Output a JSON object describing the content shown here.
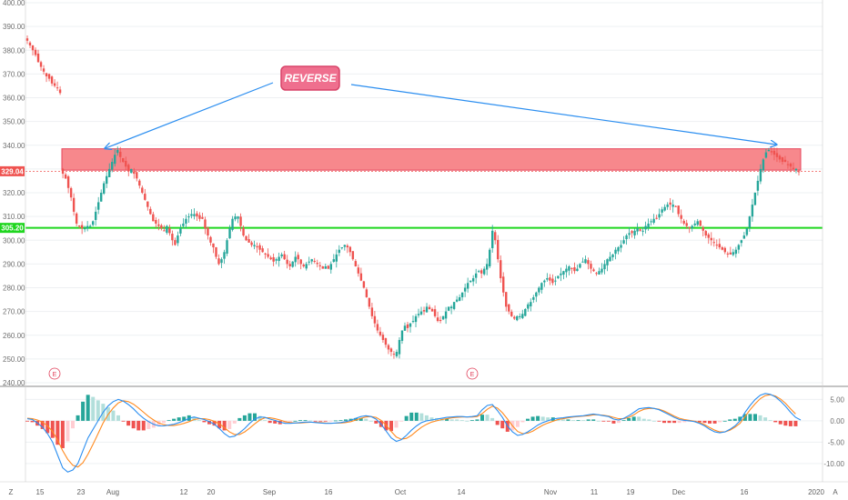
{
  "colors": {
    "up": "#26a69a",
    "down": "#ef5350",
    "support": "#1fd61f",
    "resistance_fill": "#f77c80",
    "resistance_stroke": "#e5334a",
    "arrow": "#2b8ef0",
    "reverse_fill": "#ef6f8e",
    "macd_line": "#2b8ef0",
    "signal_line": "#ff8a1f",
    "grid": "#eef0f3",
    "divider": "#888888"
  },
  "annotation": {
    "label": "REVERSE",
    "earnings_marker": "E"
  },
  "chart_data": [
    {
      "type": "candlestick",
      "title": "",
      "yticks": [
        "400.00",
        "390.00",
        "380.00",
        "370.00",
        "360.00",
        "350.00",
        "340.00",
        "330.00",
        "320.00",
        "310.00",
        "300.00",
        "290.00",
        "280.00",
        "270.00",
        "260.00",
        "250.00",
        "240.00"
      ],
      "ylim": [
        240,
        400
      ],
      "xticks": [
        "15",
        "23",
        "Aug",
        "12",
        "20",
        "Sep",
        "16",
        "Oct",
        "14",
        "Nov",
        "11",
        "19",
        "Dec",
        "16",
        "2020"
      ],
      "price_labels": [
        {
          "value": 329.04,
          "text": "329.04",
          "color": "#ef5350"
        },
        {
          "value": 305.2,
          "text": "305.20",
          "color": "#1fd61f"
        }
      ],
      "horizontal_lines": [
        {
          "value": 329.04,
          "style": "dotted",
          "color": "#ef5350"
        },
        {
          "value": 305.2,
          "style": "solid",
          "color": "#1fd61f"
        }
      ],
      "resistance_zone": [
        329.5,
        338.5
      ],
      "closes": [
        384,
        382,
        380,
        378,
        375,
        373,
        371,
        369,
        368,
        366,
        365,
        364,
        362,
        328,
        326,
        322,
        318,
        312,
        307,
        306,
        305,
        305,
        306,
        306,
        308,
        312,
        316,
        320,
        324,
        327,
        330,
        333,
        336,
        338,
        335,
        333,
        331,
        329,
        330,
        328,
        326,
        323,
        320,
        317,
        314,
        311,
        308,
        307,
        306,
        305,
        304,
        306,
        303,
        300,
        298,
        302,
        305,
        307,
        309,
        310,
        311,
        311,
        310,
        309,
        309,
        305,
        302,
        299,
        297,
        293,
        290,
        292,
        295,
        300,
        305,
        309,
        310,
        310,
        306,
        302,
        300,
        299,
        298,
        298,
        297,
        296,
        295,
        294,
        293,
        292,
        291,
        292,
        293,
        294,
        292,
        290,
        289,
        291,
        293,
        292,
        290,
        289,
        290,
        291,
        292,
        291,
        290,
        289,
        288,
        289,
        288,
        290,
        292,
        294,
        296,
        297,
        298,
        297,
        295,
        292,
        289,
        286,
        283,
        280,
        276,
        272,
        268,
        265,
        262,
        260,
        258,
        256,
        254,
        253,
        252,
        253,
        258,
        262,
        264,
        263,
        265,
        266,
        268,
        269,
        270,
        270,
        272,
        271,
        270,
        268,
        266,
        266,
        268,
        270,
        272,
        272,
        274,
        275,
        276,
        278,
        280,
        282,
        283,
        284,
        286,
        287,
        286,
        288,
        290,
        296,
        304,
        300,
        292,
        284,
        278,
        272,
        270,
        268,
        267,
        268,
        268,
        269,
        271,
        273,
        274,
        276,
        278,
        280,
        282,
        283,
        284,
        283,
        282,
        283,
        285,
        286,
        287,
        288,
        289,
        288,
        287,
        288,
        290,
        291,
        292,
        290,
        288,
        287,
        286,
        287,
        288,
        290,
        292,
        293,
        294,
        296,
        297,
        298,
        300,
        302,
        303,
        303,
        304,
        305,
        304,
        304,
        306,
        307,
        308,
        309,
        309,
        311,
        313,
        314,
        315,
        315,
        315,
        314,
        311,
        309,
        307,
        306,
        305,
        306,
        307,
        308,
        306,
        304,
        302,
        301,
        300,
        299,
        298,
        297,
        296,
        295,
        294,
        294,
        295,
        296,
        298,
        300,
        302,
        305,
        310,
        315,
        320,
        325,
        330,
        334,
        337,
        338,
        337,
        336,
        335,
        334,
        333,
        333,
        332,
        331,
        330,
        330,
        329
      ],
      "macd": {
        "yticks": [
          "5.00",
          "0.00",
          "-5.00",
          "-10.00"
        ],
        "ylim": [
          -13,
          7
        ],
        "macd_line": [
          0.5,
          0.3,
          -0.5,
          -1.5,
          -3,
          -5,
          -8,
          -11,
          -12,
          -11.5,
          -10,
          -7,
          -4,
          -2,
          0,
          2,
          3.5,
          4.5,
          5,
          4.6,
          3.8,
          2.8,
          1.6,
          0.6,
          -0.2,
          -0.8,
          -1.2,
          -1.2,
          -1,
          -0.8,
          -0.4,
          0,
          0.6,
          0.9,
          0.6,
          0.3,
          -0.2,
          -0.8,
          -1.8,
          -3,
          -3.8,
          -3.6,
          -2.8,
          -1.8,
          -0.6,
          0.4,
          0.9,
          0.8,
          0.4,
          0.1,
          -0.3,
          -0.6,
          -0.6,
          -0.5,
          -0.4,
          -0.3,
          -0.3,
          -0.4,
          -0.5,
          -0.6,
          -0.6,
          -0.5,
          -0.4,
          -0.2,
          0.1,
          0.6,
          1,
          1.2,
          1,
          0.4,
          -0.8,
          -2.4,
          -4,
          -4.8,
          -4.4,
          -3.4,
          -2.2,
          -1.2,
          -0.4,
          0,
          0.2,
          0.4,
          0.6,
          0.8,
          0.9,
          1,
          1,
          0.9,
          1,
          1.2,
          2.6,
          3.6,
          3.8,
          2.4,
          0.8,
          -1.2,
          -2.6,
          -3.4,
          -3.2,
          -2.6,
          -1.8,
          -1,
          -0.4,
          0,
          0.4,
          0.6,
          0.7,
          0.9,
          1,
          1.1,
          1.2,
          1.4,
          1.6,
          1.4,
          1.2,
          1,
          0.4,
          0.2,
          0.6,
          1.2,
          2,
          2.8,
          3,
          3.1,
          2.9,
          2.6,
          2,
          1.4,
          0.8,
          0.3,
          0.1,
          0,
          -0.2,
          -0.6,
          -1.2,
          -2,
          -2.6,
          -2.8,
          -2.6,
          -2,
          -1.2,
          0,
          2,
          3.6,
          5,
          6,
          6.4,
          6.2,
          5.6,
          4.6,
          3.4,
          2,
          0.8,
          0.2
        ],
        "signal_line": [
          0.6,
          0.5,
          0.2,
          -0.3,
          -1.2,
          -2.5,
          -4.5,
          -7,
          -9,
          -10.4,
          -10.8,
          -9.8,
          -7.8,
          -5.5,
          -3,
          -0.5,
          1.5,
          3,
          4.2,
          4.7,
          4.5,
          3.9,
          3,
          2,
          1,
          0.2,
          -0.5,
          -0.9,
          -1.1,
          -1.1,
          -0.9,
          -0.6,
          -0.2,
          0.3,
          0.5,
          0.5,
          0.3,
          -0.1,
          -0.7,
          -1.6,
          -2.6,
          -3.2,
          -3.2,
          -2.6,
          -1.7,
          -0.7,
          0.2,
          0.7,
          0.7,
          0.5,
          0.2,
          -0.2,
          -0.4,
          -0.5,
          -0.5,
          -0.4,
          -0.35,
          -0.35,
          -0.4,
          -0.5,
          -0.55,
          -0.55,
          -0.5,
          -0.4,
          -0.2,
          0.2,
          0.6,
          0.9,
          1,
          0.8,
          0.1,
          -1,
          -2.5,
          -3.8,
          -4.3,
          -4.1,
          -3.4,
          -2.4,
          -1.5,
          -0.8,
          -0.3,
          0,
          0.3,
          0.5,
          0.7,
          0.8,
          0.9,
          0.9,
          0.9,
          1,
          1.7,
          2.7,
          3.4,
          3,
          1.9,
          0.4,
          -1.2,
          -2.5,
          -3,
          -2.9,
          -2.4,
          -1.7,
          -1,
          -0.5,
          -0.1,
          0.3,
          0.5,
          0.7,
          0.9,
          1,
          1.1,
          1.2,
          1.4,
          1.4,
          1.3,
          1.1,
          0.8,
          0.5,
          0.5,
          0.8,
          1.4,
          2.2,
          2.7,
          2.9,
          2.9,
          2.7,
          2.3,
          1.7,
          1.1,
          0.6,
          0.3,
          0.1,
          -0.1,
          -0.4,
          -0.9,
          -1.6,
          -2.2,
          -2.6,
          -2.6,
          -2.2,
          -1.5,
          -0.6,
          1,
          2.6,
          4,
          5.2,
          5.9,
          6.1,
          5.8,
          5.1,
          4.1,
          2.8,
          1.6
        ]
      }
    }
  ]
}
